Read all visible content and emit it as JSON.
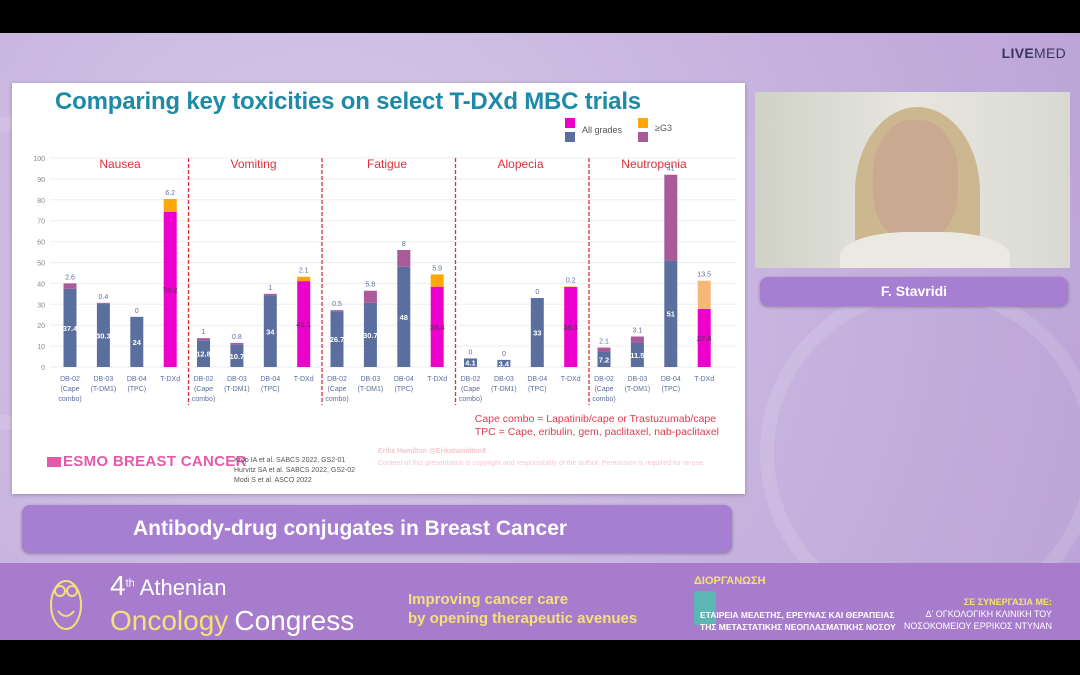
{
  "brand": {
    "bold": "LIVE",
    "light": "MED"
  },
  "slide": {
    "title": "Comparing key toxicities on select T-DXd MBC trials",
    "legend": {
      "all": "All grades",
      "g3": "≥G3"
    },
    "footnote": [
      "Cape combo = Lapatinib/cape or Trastuzumab/cape",
      "TPC = Cape, eribulin, gem, paclitaxel, nab-paclitaxel"
    ],
    "logo": "ESMO BREAST CANCER",
    "references": [
      "Krop IA et al. SABCS 2022, GS2-01",
      "Hurvitz SA et al.  SABCS 2022, GS2-02",
      "Modi S et al. ASCO 2022"
    ],
    "author": "Erika Hamilton  @Erikahamilton8",
    "copyright": "Content of this presentation is copyright and responsibility of the author. Permission is required for re-use."
  },
  "chart_data": {
    "type": "bar",
    "stacked": true,
    "ylim": [
      0,
      100
    ],
    "yticks": [
      0,
      10,
      20,
      30,
      40,
      50,
      60,
      70,
      80,
      90,
      100
    ],
    "grid": true,
    "legend_placement": "top-right",
    "colors": {
      "all": "#5b6f9f",
      "g3": "#a85a9a",
      "tdxd_all": "#ee00cc",
      "tdxd_g3": "#ffa60a",
      "tdxd_g3_neutropenia": "#f6b877",
      "group_title": "#e0303a",
      "divider": "#e0303a"
    },
    "categories": [
      [
        "DB-02",
        "(Cape",
        "combo)"
      ],
      [
        "DB-03",
        "(T-DM1)"
      ],
      [
        "DB-04",
        "(TPC)"
      ],
      [
        "T-DXd"
      ]
    ],
    "groups": [
      {
        "title": "Nausea",
        "all_grades": [
          37.4,
          30.3,
          24,
          74.2
        ],
        "g3": [
          2.6,
          0.4,
          0,
          6.2
        ]
      },
      {
        "title": "Vomiting",
        "all_grades": [
          12.8,
          10.7,
          34,
          41.1
        ],
        "g3": [
          1,
          0.8,
          1,
          2.1
        ]
      },
      {
        "title": "Fatigue",
        "all_grades": [
          26.7,
          30.7,
          48,
          38.4
        ],
        "g3": [
          0.5,
          5.8,
          8,
          5.9
        ]
      },
      {
        "title": "Alopecia",
        "all_grades": [
          4.1,
          3.4,
          33,
          38.3
        ],
        "g3": [
          0,
          0,
          0,
          0.2
        ]
      },
      {
        "title": "Neutropenia",
        "all_grades": [
          7.2,
          11.5,
          51,
          27.8
        ],
        "g3": [
          2.1,
          3.1,
          41,
          13.5
        ]
      }
    ]
  },
  "speaker": {
    "name": "F. Stavridi"
  },
  "session_title": "Antibody-drug conjugates in Breast Cancer",
  "banner": {
    "ordinal": "4",
    "ordinal_suffix": "th",
    "word1": "Athenian",
    "word2": "Oncology",
    "word3": "Congress",
    "tagline": [
      "Improving cancer care",
      "by opening therapeutic avenues"
    ],
    "org_label": "ΔΙΟΡΓΑΝΩΣΗ",
    "org_name": [
      "ΕΤΑΙΡΕΙΑ ΜΕΛΕΤΗΣ, ΕΡΕΥΝΑΣ ΚΑΙ ΘΕΡΑΠΕΙΑΣ",
      "ΤΗΣ ΜΕΤΑΣΤΑΤΙΚΗΣ ΝΕΟΠΛΑΣΜΑΤΙΚΗΣ ΝΟΣΟΥ"
    ],
    "coop_label": "ΣΕ ΣΥΝΕΡΓΑΣΙΑ ΜΕ:",
    "coop_name": [
      "Δ' ΟΓΚΟΛΟΓΙΚΗ ΚΛΙΝΙΚΗ ΤΟΥ",
      "ΝΟΣΟΚΟΜΕΙΟΥ ΕΡΡΙΚΟΣ ΝΤΥΝΑΝ"
    ]
  }
}
